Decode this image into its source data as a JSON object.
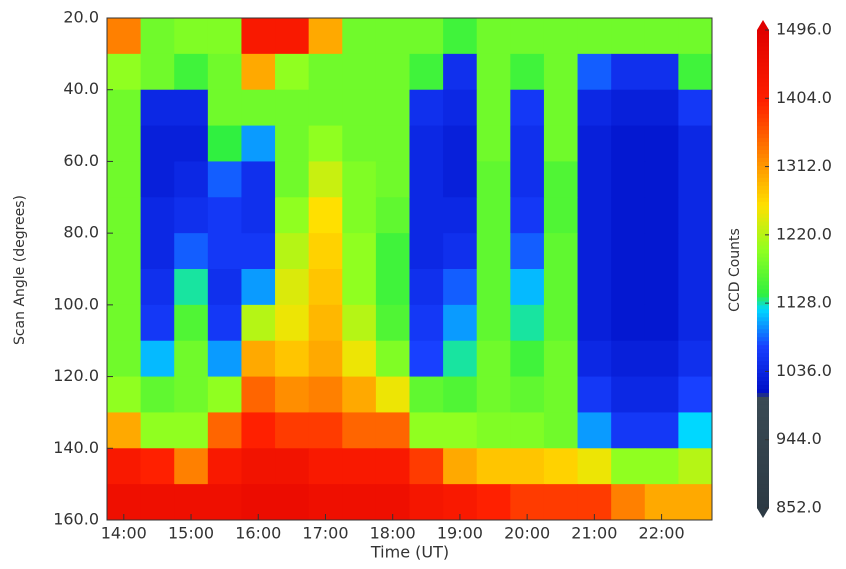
{
  "chart_data": {
    "type": "heatmap",
    "xlabel": "Time (UT)",
    "ylabel": "Scan Angle (degrees)",
    "colorbar_label": "CCD Counts",
    "x": [
      14.0,
      14.5,
      15.0,
      15.5,
      16.0,
      16.5,
      17.0,
      17.5,
      18.0,
      18.5,
      19.0,
      19.5,
      20.0,
      20.5,
      21.0,
      21.5,
      22.0,
      22.5
    ],
    "y": [
      25,
      35,
      45,
      55,
      65,
      75,
      85,
      95,
      105,
      115,
      125,
      135,
      145,
      155
    ],
    "values": [
      [
        1330,
        1180,
        1190,
        1190,
        1420,
        1420,
        1300,
        1180,
        1180,
        1180,
        1150,
        1180,
        1180,
        1180,
        1180,
        1180,
        1180,
        1180
      ],
      [
        1200,
        1180,
        1150,
        1180,
        1300,
        1200,
        1180,
        1180,
        1180,
        1150,
        1050,
        1180,
        1150,
        1180,
        1080,
        1050,
        1050,
        1150
      ],
      [
        1180,
        1040,
        1040,
        1180,
        1180,
        1180,
        1180,
        1180,
        1180,
        1050,
        1040,
        1180,
        1060,
        1180,
        1040,
        1030,
        1030,
        1060
      ],
      [
        1180,
        1030,
        1030,
        1140,
        1100,
        1180,
        1200,
        1180,
        1180,
        1040,
        1030,
        1180,
        1050,
        1180,
        1030,
        1020,
        1020,
        1040
      ],
      [
        1180,
        1030,
        1040,
        1080,
        1050,
        1180,
        1230,
        1190,
        1180,
        1040,
        1030,
        1170,
        1050,
        1160,
        1030,
        1020,
        1020,
        1040
      ],
      [
        1180,
        1040,
        1050,
        1060,
        1050,
        1200,
        1260,
        1190,
        1170,
        1040,
        1040,
        1170,
        1060,
        1160,
        1030,
        1020,
        1020,
        1040
      ],
      [
        1180,
        1040,
        1080,
        1060,
        1060,
        1220,
        1270,
        1200,
        1150,
        1040,
        1050,
        1170,
        1080,
        1170,
        1030,
        1020,
        1020,
        1040
      ],
      [
        1180,
        1050,
        1130,
        1050,
        1100,
        1240,
        1280,
        1200,
        1150,
        1050,
        1080,
        1170,
        1110,
        1170,
        1030,
        1020,
        1020,
        1040
      ],
      [
        1180,
        1060,
        1160,
        1060,
        1220,
        1250,
        1290,
        1220,
        1160,
        1060,
        1100,
        1170,
        1130,
        1170,
        1030,
        1020,
        1020,
        1040
      ],
      [
        1180,
        1110,
        1180,
        1100,
        1300,
        1280,
        1300,
        1250,
        1190,
        1070,
        1130,
        1180,
        1150,
        1180,
        1040,
        1030,
        1030,
        1050
      ],
      [
        1200,
        1170,
        1180,
        1200,
        1350,
        1320,
        1330,
        1300,
        1250,
        1170,
        1160,
        1180,
        1170,
        1180,
        1060,
        1040,
        1040,
        1070
      ],
      [
        1300,
        1200,
        1200,
        1350,
        1400,
        1380,
        1380,
        1350,
        1350,
        1200,
        1200,
        1190,
        1190,
        1180,
        1100,
        1060,
        1060,
        1120
      ],
      [
        1420,
        1400,
        1330,
        1420,
        1440,
        1440,
        1420,
        1420,
        1420,
        1380,
        1300,
        1280,
        1280,
        1270,
        1250,
        1200,
        1200,
        1220
      ],
      [
        1450,
        1450,
        1450,
        1450,
        1460,
        1460,
        1450,
        1450,
        1450,
        1430,
        1420,
        1400,
        1380,
        1380,
        1380,
        1330,
        1300,
        1300
      ]
    ],
    "xlim": [
      13.75,
      22.75
    ],
    "ylim": [
      160,
      20
    ],
    "xticks": [
      {
        "value": 14,
        "label": "14:00"
      },
      {
        "value": 15,
        "label": "15:00"
      },
      {
        "value": 16,
        "label": "16:00"
      },
      {
        "value": 17,
        "label": "17:00"
      },
      {
        "value": 18,
        "label": "18:00"
      },
      {
        "value": 19,
        "label": "19:00"
      },
      {
        "value": 20,
        "label": "20:00"
      },
      {
        "value": 21,
        "label": "21:00"
      },
      {
        "value": 22,
        "label": "22:00"
      }
    ],
    "yticks": [
      {
        "value": 20,
        "label": "20.0"
      },
      {
        "value": 40,
        "label": "40.0"
      },
      {
        "value": 60,
        "label": "60.0"
      },
      {
        "value": 80,
        "label": "80.0"
      },
      {
        "value": 100,
        "label": "100.0"
      },
      {
        "value": 120,
        "label": "120.0"
      },
      {
        "value": 140,
        "label": "140.0"
      },
      {
        "value": 160,
        "label": "160.0"
      }
    ],
    "clim": [
      852,
      1496
    ],
    "cticks": [
      {
        "value": 852,
        "label": "852.0"
      },
      {
        "value": 944,
        "label": "944.0"
      },
      {
        "value": 1036,
        "label": "1036.0"
      },
      {
        "value": 1128,
        "label": "1128.0"
      },
      {
        "value": 1220,
        "label": "1220.0"
      },
      {
        "value": 1312,
        "label": "1312.0"
      },
      {
        "value": 1404,
        "label": "1404.0"
      },
      {
        "value": 1496,
        "label": "1496.0"
      }
    ],
    "colorscale": [
      [
        852,
        "#2c3a44"
      ],
      [
        1000,
        "#3a4a54"
      ],
      [
        1010,
        "#0010c8"
      ],
      [
        1070,
        "#1840ff"
      ],
      [
        1120,
        "#00d8ff"
      ],
      [
        1140,
        "#30f040"
      ],
      [
        1200,
        "#90ff20"
      ],
      [
        1260,
        "#ffe000"
      ],
      [
        1330,
        "#ff8000"
      ],
      [
        1400,
        "#ff2000"
      ],
      [
        1496,
        "#e00000"
      ]
    ]
  }
}
